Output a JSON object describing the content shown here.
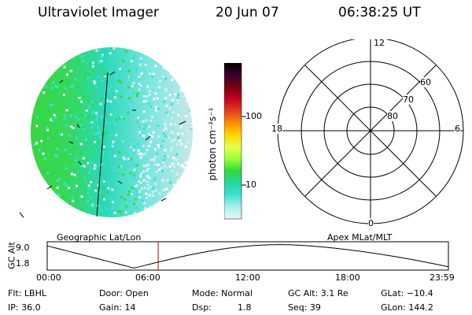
{
  "header": {
    "instrument": "Ultraviolet Imager",
    "date": "20 Jun 07",
    "time": "06:38:25 UT"
  },
  "colorbar": {
    "unit_label": "photon cm⁻²s⁻¹",
    "ticks": [
      "100",
      "10"
    ],
    "colors": [
      "#000000",
      "#3a0030",
      "#7a0010",
      "#c8001e",
      "#e04020",
      "#ff8c00",
      "#ffd700",
      "#e6ff4a",
      "#9aff3a",
      "#2edc3a",
      "#22d8a0",
      "#40e0d0",
      "#aaf0f0",
      "#e8f4f6"
    ]
  },
  "polar_plot": {
    "mlt_labels": {
      "top": "12",
      "left": "18",
      "right": "6",
      "bottom": "0"
    },
    "lat_labels": [
      "60",
      "70",
      "80"
    ]
  },
  "map_labels": {
    "left": "Geographic Lat/Lon",
    "right": "Apex MLat/MLT"
  },
  "alt_plot": {
    "axis_label": "GC Alt",
    "y_ticks": [
      "9.0",
      "1.8"
    ],
    "x_ticks": [
      "00:00",
      "06:00",
      "12:00",
      "18:00",
      "23:59"
    ],
    "current_time_hours": 6.64
  },
  "status": {
    "flt": "Flt: LBHL",
    "ip": "IP: 36.0",
    "door": "Door: Open",
    "gain": "Gain: 14",
    "mode": "Mode: Normal",
    "dsp_label": "Dsp:",
    "dsp_value": "1.8",
    "gc_alt": "GC Alt: 3.1 Re",
    "seq": "Seq: 39",
    "glat": "GLat: −10.4",
    "glon": "GLon: 144.2"
  },
  "colors": {
    "aurora_green": "#2edc3a",
    "aurora_cyan": "#40e0d0",
    "aurora_pale": "#d8eef0",
    "time_marker": "#c00000"
  }
}
